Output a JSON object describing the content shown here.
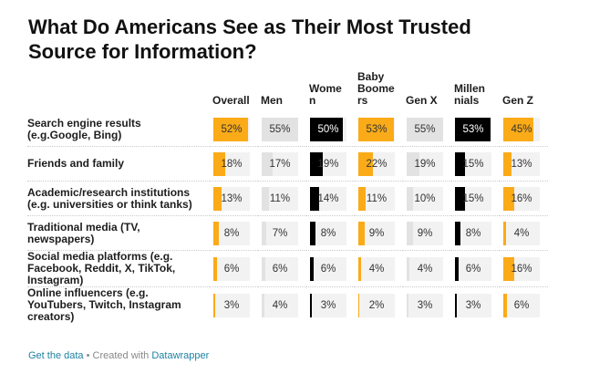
{
  "chart_data": {
    "type": "table",
    "title": "What Do Americans See as Their Most Trusted Source for Information?",
    "columns": [
      "Overall",
      "Men",
      "Wome\nn",
      "Baby\nBoome\nrs",
      "Gen X",
      "Millen\nnials",
      "Gen Z"
    ],
    "column_colors": [
      "#fbab18",
      "#e2e2e2",
      "#000000",
      "#fbab18",
      "#e2e2e2",
      "#000000",
      "#fbab18"
    ],
    "bar_max": 55,
    "rows": [
      {
        "label": "Search engine results (e.g.Google, Bing)",
        "values": [
          52,
          55,
          50,
          53,
          55,
          53,
          45
        ]
      },
      {
        "label": "Friends and family",
        "values": [
          18,
          17,
          19,
          22,
          19,
          15,
          13
        ]
      },
      {
        "label": "Academic/research institutions (e.g. universities or think tanks)",
        "values": [
          13,
          11,
          14,
          11,
          10,
          15,
          16
        ]
      },
      {
        "label": "Traditional media (TV, newspapers)",
        "values": [
          8,
          7,
          8,
          9,
          9,
          8,
          4
        ]
      },
      {
        "label": "Social media platforms (e.g. Facebook, Reddit, X, TikTok, Instagram)",
        "values": [
          6,
          6,
          6,
          4,
          4,
          6,
          16
        ]
      },
      {
        "label": "Online influencers (e.g. YouTubers, Twitch, Instagram creators)",
        "values": [
          3,
          4,
          3,
          2,
          3,
          3,
          6
        ]
      }
    ],
    "unit": "%"
  },
  "footer": {
    "get_data": "Get the data",
    "sep": " • Created with ",
    "datawrapper": "Datawrapper"
  }
}
